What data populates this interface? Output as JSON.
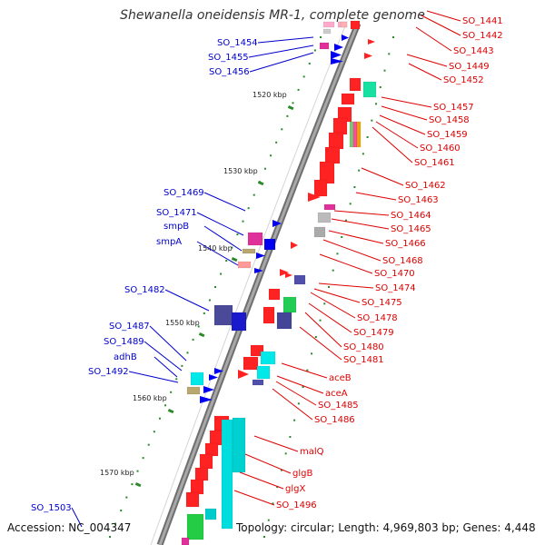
{
  "title": "Shewanella oneidensis MR-1, complete genome",
  "accession": "Accession: NC_004347",
  "summary": "Topology: circular; Length: 4,969,803 bp; Genes: 4,448",
  "colors": {
    "backbone": "#888888",
    "forward_label": "#0000cc",
    "reverse_label": "#dd0000",
    "kbp_tick": "#2a8a2a"
  },
  "kbp_ticks": [
    "1520 kbp",
    "1530 kbp",
    "1540 kbp",
    "1550 kbp",
    "1560 kbp",
    "1570 kbp"
  ],
  "left_labels": [
    "SO_1454",
    "SO_1455",
    "SO_1456",
    "SO_1469",
    "SO_1471",
    "smpB",
    "smpA",
    "SO_1482",
    "SO_1487",
    "SO_1489",
    "adhB",
    "SO_1492",
    "SO_1503"
  ],
  "right_labels": [
    "SO_1441",
    "SO_1442",
    "SO_1443",
    "SO_1449",
    "SO_1452",
    "SO_1457",
    "SO_1458",
    "SO_1459",
    "SO_1460",
    "SO_1461",
    "SO_1462",
    "SO_1463",
    "SO_1464",
    "SO_1465",
    "SO_1466",
    "SO_1468",
    "SO_1470",
    "SO_1474",
    "SO_1475",
    "SO_1478",
    "SO_1479",
    "SO_1480",
    "SO_1481",
    "aceB",
    "aceA",
    "SO_1485",
    "SO_1486",
    "malQ",
    "glgB",
    "glgX",
    "SO_1496"
  ]
}
